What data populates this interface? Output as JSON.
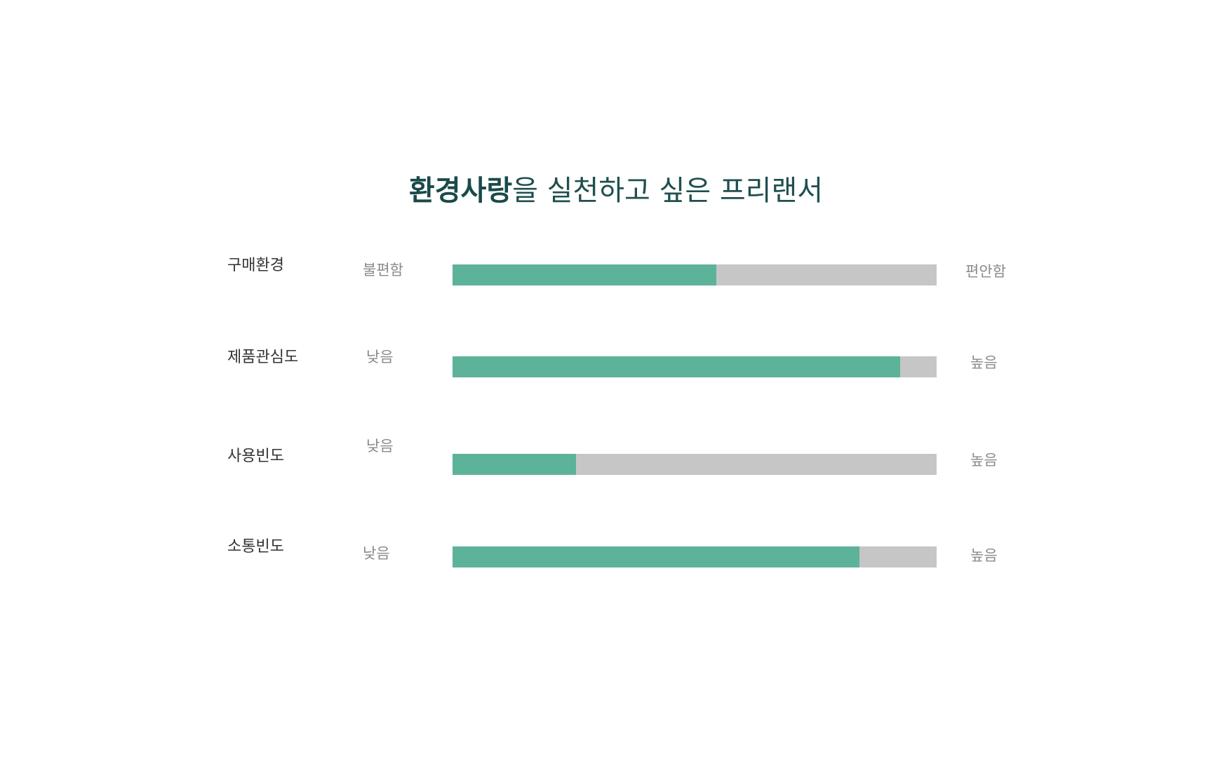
{
  "title": {
    "emphasis": "환경사랑",
    "rest": "을 실천하고 싶은 프리랜서"
  },
  "colors": {
    "fill": "#5db39a",
    "track": "#c6c6c6",
    "title": "#1f4f4f"
  },
  "chart_data": {
    "type": "bar",
    "orientation": "horizontal",
    "categories": [
      "구매환경",
      "제품관심도",
      "사용빈도",
      "소통빈도"
    ],
    "values": [
      0.545,
      0.925,
      0.255,
      0.84
    ],
    "value_scale": "fraction 0-1",
    "min_labels": [
      "불편함",
      "낮음",
      "낮음",
      "낮음"
    ],
    "max_labels": [
      "편안함",
      "높음",
      "높음",
      "높음"
    ],
    "ylim": [
      0,
      1
    ]
  }
}
